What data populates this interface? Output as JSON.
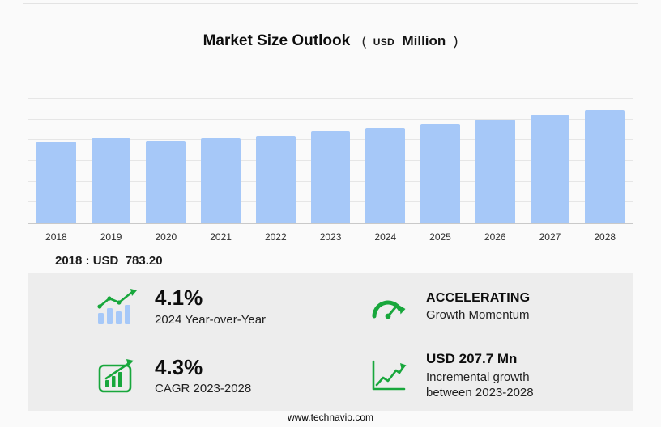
{
  "title": {
    "main": "Market Size Outlook",
    "open_paren": "(",
    "currency": "USD",
    "unit": "Million",
    "close_paren": ")"
  },
  "chart_data": {
    "type": "bar",
    "title": "Market Size Outlook (USD Million)",
    "categories": [
      "2018",
      "2019",
      "2020",
      "2021",
      "2022",
      "2023",
      "2024",
      "2025",
      "2026",
      "2027",
      "2028"
    ],
    "values": [
      783.2,
      815,
      795,
      818,
      845,
      886.5,
      922.8,
      957,
      995,
      1042,
      1094.2
    ],
    "xlabel": "",
    "ylabel": "USD Million",
    "ylim": [
      0,
      1200
    ],
    "grid": true,
    "grid_step": 200,
    "legend": false,
    "bar_color": "#a6c8f8"
  },
  "annotation": {
    "base_year_value": "2018 : USD  783.20"
  },
  "stats": [
    {
      "icon": "yoy-bar-chart-icon",
      "value": "4.1%",
      "label": "2024 Year-over-Year"
    },
    {
      "icon": "speedometer-icon",
      "value": "ACCELERATING",
      "label": "Growth Momentum"
    },
    {
      "icon": "cagr-framed-chart-icon",
      "value": "4.3%",
      "label": "CAGR 2023-2028"
    },
    {
      "icon": "incremental-growth-icon",
      "value": "USD 207.7 Mn",
      "label": "Incremental growth",
      "label2": "between 2023-2028"
    }
  ],
  "footer": {
    "url": "www.technavio.com"
  },
  "colors": {
    "bar": "#a6c8f8",
    "accent_green": "#18a73c",
    "panel_bg": "#ededed",
    "page_bg": "#fafafa"
  }
}
